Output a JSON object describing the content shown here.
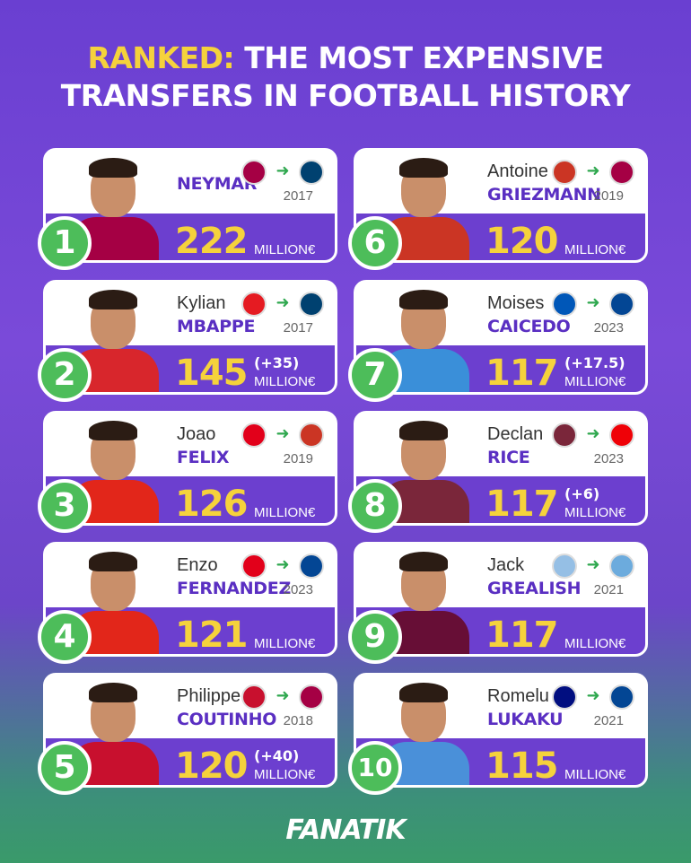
{
  "title": {
    "highlight": "RANKED:",
    "line1_rest": " THE MOST EXPENSIVE",
    "line2": "TRANSFERS IN FOOTBALL HISTORY"
  },
  "unit": "MILLION€",
  "players": [
    {
      "rank": "1",
      "first": "",
      "last": "NEYMAR",
      "year": "2017",
      "amount": "222",
      "extra": "",
      "from_club": "barcelona-badge",
      "to_club": "psg-badge",
      "from_color": "#a50044",
      "to_color": "#004170",
      "shirt": "#a50044"
    },
    {
      "rank": "2",
      "first": "Kylian",
      "last": "MBAPPE",
      "year": "2017",
      "amount": "145",
      "extra": "(+35)",
      "from_club": "monaco-badge",
      "to_club": "psg-badge",
      "from_color": "#e51b22",
      "to_color": "#004170",
      "shirt": "#d8262c"
    },
    {
      "rank": "3",
      "first": "Joao",
      "last": "FELIX",
      "year": "2019",
      "amount": "126",
      "extra": "",
      "from_club": "benfica-badge",
      "to_club": "atletico-badge",
      "from_color": "#e2001a",
      "to_color": "#cb3524",
      "shirt": "#e2261a"
    },
    {
      "rank": "4",
      "first": "Enzo",
      "last": "FERNANDEZ",
      "year": "2023",
      "amount": "121",
      "extra": "",
      "from_club": "benfica-badge",
      "to_club": "chelsea-badge",
      "from_color": "#e2001a",
      "to_color": "#034694",
      "shirt": "#e2261a"
    },
    {
      "rank": "5",
      "first": "Philippe",
      "last": "COUTINHO",
      "year": "2018",
      "amount": "120",
      "extra": "(+40)",
      "from_club": "liverpool-badge",
      "to_club": "barcelona-badge",
      "from_color": "#c8102e",
      "to_color": "#a50044",
      "shirt": "#c8102e"
    },
    {
      "rank": "6",
      "first": "Antoine",
      "last": "GRIEZMANN",
      "year": "2019",
      "amount": "120",
      "extra": "",
      "from_club": "atletico-badge",
      "to_club": "barcelona-badge",
      "from_color": "#cb3524",
      "to_color": "#a50044",
      "shirt": "#cb3524"
    },
    {
      "rank": "7",
      "first": "Moises",
      "last": "CAICEDO",
      "year": "2023",
      "amount": "117",
      "extra": "(+17.5)",
      "from_club": "brighton-badge",
      "to_club": "chelsea-badge",
      "from_color": "#0057b8",
      "to_color": "#034694",
      "shirt": "#3a8fd9"
    },
    {
      "rank": "8",
      "first": "Declan",
      "last": "RICE",
      "year": "2023",
      "amount": "117",
      "extra": "(+6)",
      "from_club": "west-ham-badge",
      "to_club": "arsenal-badge",
      "from_color": "#7a263a",
      "to_color": "#ef0107",
      "shirt": "#7a263a"
    },
    {
      "rank": "9",
      "first": "Jack",
      "last": "GREALISH",
      "year": "2021",
      "amount": "117",
      "extra": "",
      "from_club": "aston-villa-badge",
      "to_club": "man-city-badge",
      "from_color": "#95bfe5",
      "to_color": "#6cabdd",
      "shirt": "#670e36"
    },
    {
      "rank": "10",
      "first": "Romelu",
      "last": "LUKAKU",
      "year": "2021",
      "amount": "115",
      "extra": "",
      "from_club": "inter-badge",
      "to_club": "chelsea-badge",
      "from_color": "#010e80",
      "to_color": "#034694",
      "shirt": "#4a90d9"
    }
  ],
  "footer": {
    "logo": "FANATIK"
  }
}
